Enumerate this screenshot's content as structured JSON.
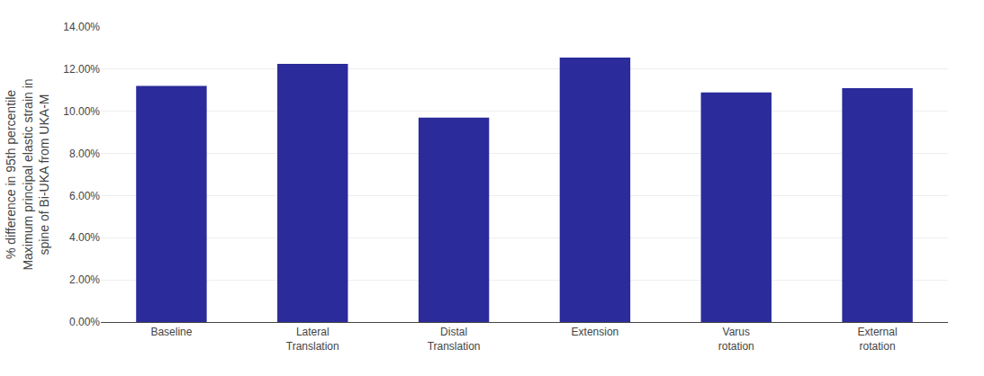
{
  "chart_data": {
    "type": "bar",
    "categories": [
      "Baseline",
      "Lateral\nTranslation",
      "Distal\nTranslation",
      "Extension",
      "Varus\nrotation",
      "External\nrotation"
    ],
    "values": [
      0.112,
      0.1225,
      0.097,
      0.1255,
      0.109,
      0.111
    ],
    "color": "#2B2B9B",
    "ylabel": "% difference in 95th percentile\nMaximum principal elastic strain in\nspine of Bi-UKA from UKA-M",
    "ylim": [
      0,
      0.14
    ],
    "yticks": [
      {
        "value": 0.0,
        "label": "0.00%"
      },
      {
        "value": 0.02,
        "label": "2.00%"
      },
      {
        "value": 0.04,
        "label": "4.00%"
      },
      {
        "value": 0.06,
        "label": "6.00%"
      },
      {
        "value": 0.08,
        "label": "8.00%"
      },
      {
        "value": 0.1,
        "label": "10.00%"
      },
      {
        "value": 0.12,
        "label": "12.00%"
      },
      {
        "value": 0.14,
        "label": "14.00%"
      }
    ],
    "grid": true
  }
}
